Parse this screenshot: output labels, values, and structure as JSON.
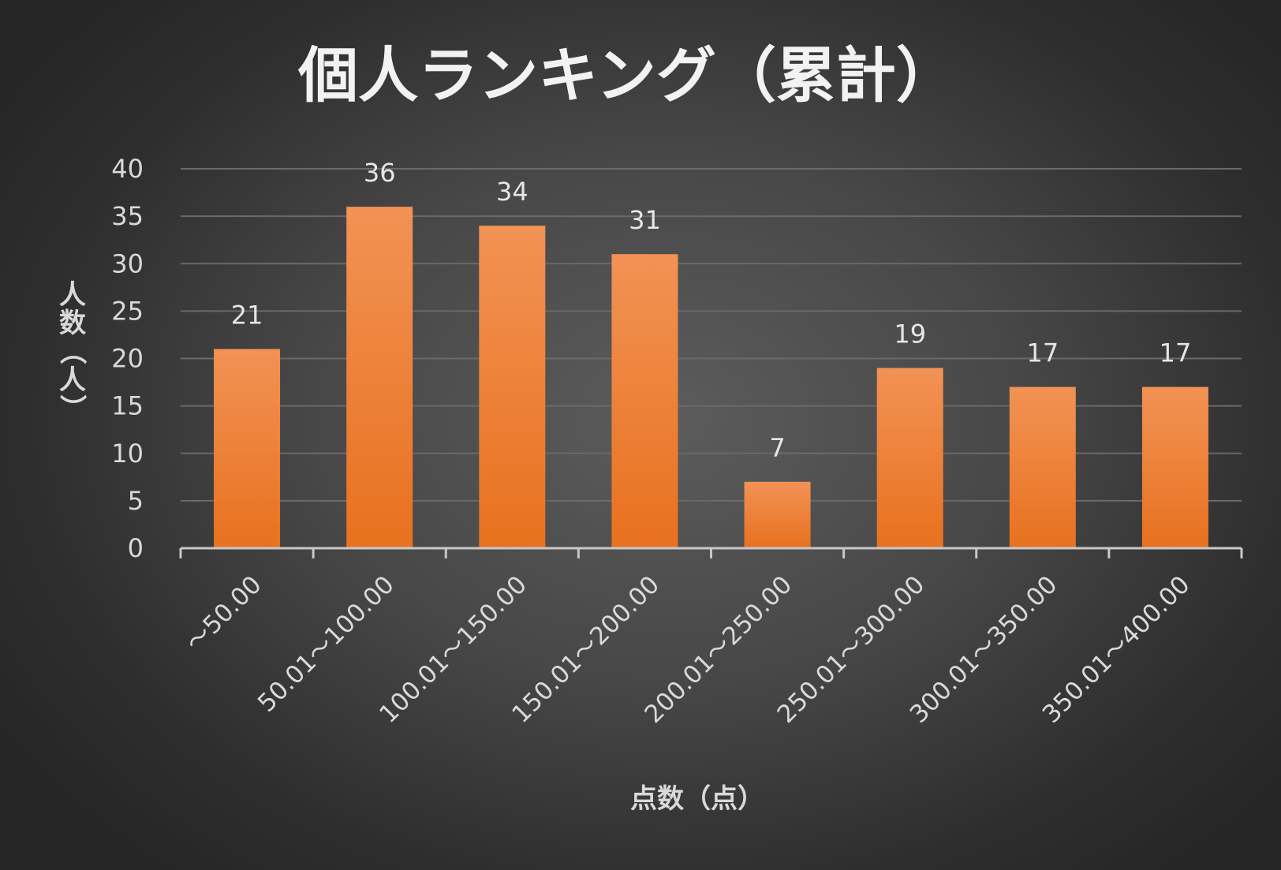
{
  "chart_data": {
    "type": "bar",
    "title": "個人ランキング（累計）",
    "xlabel": "点数（点）",
    "ylabel": "人数（人）",
    "categories": [
      "～50.00",
      "50.01～100.00",
      "100.01～150.00",
      "150.01～200.00",
      "200.01～250.00",
      "250.01～300.00",
      "300.01～350.00",
      "350.01～400.00"
    ],
    "values": [
      21,
      36,
      34,
      31,
      7,
      19,
      17,
      17
    ],
    "ylim": [
      0,
      40
    ],
    "yticks": [
      "0",
      "5",
      "10",
      "15",
      "20",
      "25",
      "30",
      "35",
      "40"
    ],
    "data_labels": [
      "21",
      "36",
      "34",
      "31",
      "7",
      "19",
      "17",
      "17"
    ],
    "grid": true,
    "legend": "none",
    "colors": {
      "bar_top": "#f29255",
      "bar_bottom": "#e8711e",
      "background": "#474747"
    }
  }
}
